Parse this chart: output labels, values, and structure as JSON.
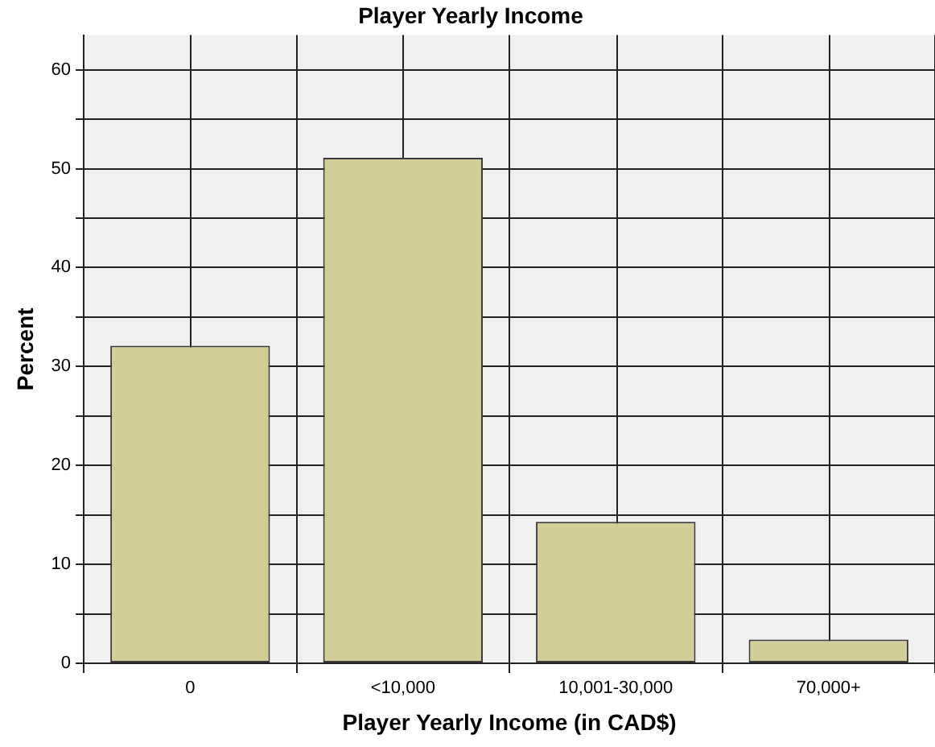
{
  "chart_data": {
    "type": "bar",
    "title": "Player Yearly Income",
    "xlabel": "Player Yearly Income (in CAD$)",
    "ylabel": "Percent",
    "categories": [
      "0",
      "<10,000",
      "10,001-30,000",
      "70,000+"
    ],
    "values": [
      32.1,
      51.1,
      14.3,
      2.4
    ],
    "color": "#d3ce97",
    "ylim": [
      0,
      63.5
    ],
    "yticks": [
      0,
      {
        "value": 5,
        "label": null
      },
      10,
      {
        "value": 15,
        "label": null
      },
      20,
      {
        "value": 25,
        "label": null
      },
      30,
      {
        "value": 35,
        "label": null
      },
      40,
      {
        "value": 45,
        "label": null
      },
      50,
      {
        "value": 55,
        "label": null
      },
      60
    ],
    "grid": true
  }
}
